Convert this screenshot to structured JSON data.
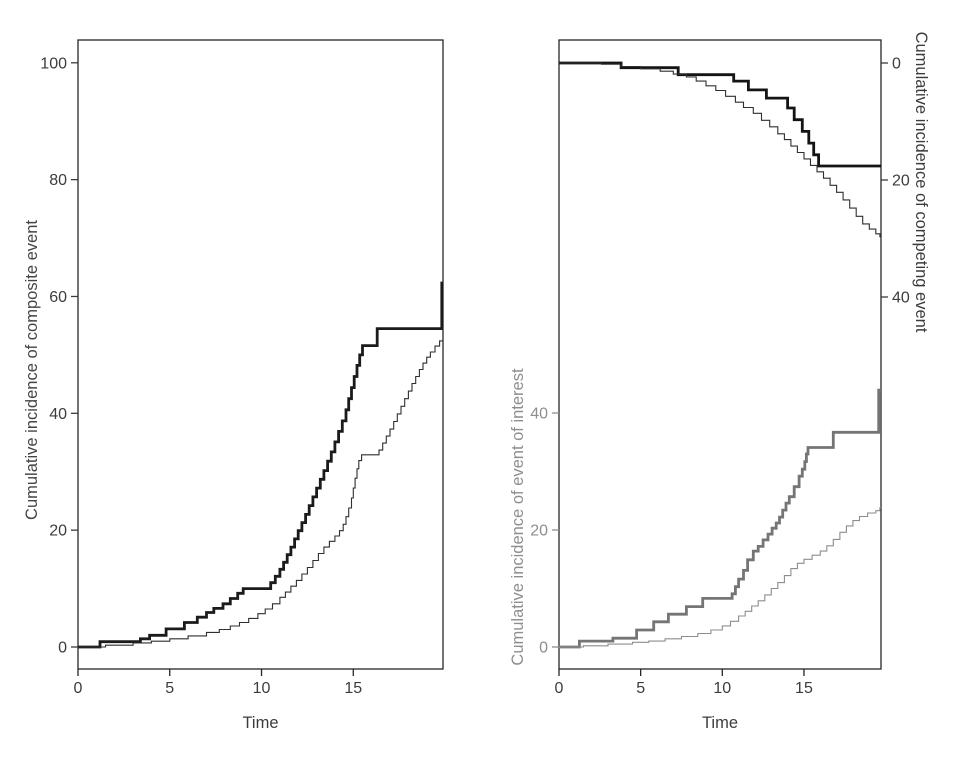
{
  "figure_title": "",
  "chart_data": {
    "type": "line",
    "subtype": "step-function cumulative incidence curves (two panels, two groups per curve: thick vs thin)",
    "grid": "off",
    "legend": "none",
    "x": {
      "label": "Time",
      "ticks": [
        0,
        5,
        10,
        15
      ],
      "range": [
        0,
        19.9
      ]
    },
    "panels": [
      {
        "id": "composite",
        "xlabel": "Time",
        "y_axes": [
          {
            "id": "composite",
            "side": "left",
            "label": "Cumulative incidence of composite event",
            "ticks": [
              0,
              20,
              40,
              60,
              80,
              100
            ],
            "range": [
              0,
              107
            ],
            "inverted": false,
            "color": "#3c3c3c"
          }
        ],
        "series": [
          {
            "name": "composite-thick-line",
            "axis": "composite",
            "color": "#1b1b1b",
            "stroke_width": 2.8,
            "points": [
              [
                0,
                0
              ],
              [
                1.2,
                0.9
              ],
              [
                3.4,
                1.4
              ],
              [
                3.9,
                2.0
              ],
              [
                4.8,
                3.1
              ],
              [
                5.8,
                4.2
              ],
              [
                6.5,
                5.1
              ],
              [
                7.0,
                5.9
              ],
              [
                7.4,
                6.6
              ],
              [
                7.9,
                7.4
              ],
              [
                8.3,
                8.3
              ],
              [
                8.7,
                9.2
              ],
              [
                9.0,
                10.0
              ],
              [
                10.5,
                11.0
              ],
              [
                10.75,
                12.1
              ],
              [
                11.0,
                13.3
              ],
              [
                11.2,
                14.5
              ],
              [
                11.4,
                15.8
              ],
              [
                11.6,
                17.1
              ],
              [
                11.8,
                18.5
              ],
              [
                12.0,
                19.9
              ],
              [
                12.2,
                21.3
              ],
              [
                12.4,
                22.7
              ],
              [
                12.6,
                24.2
              ],
              [
                12.8,
                25.7
              ],
              [
                13.0,
                27.2
              ],
              [
                13.2,
                28.7
              ],
              [
                13.4,
                30.2
              ],
              [
                13.6,
                31.8
              ],
              [
                13.8,
                33.4
              ],
              [
                14.0,
                35.1
              ],
              [
                14.2,
                36.9
              ],
              [
                14.4,
                38.7
              ],
              [
                14.6,
                40.6
              ],
              [
                14.75,
                42.5
              ],
              [
                14.9,
                44.4
              ],
              [
                15.05,
                46.3
              ],
              [
                15.2,
                48.2
              ],
              [
                15.35,
                50.0
              ],
              [
                15.5,
                51.6
              ],
              [
                16.3,
                54.5
              ],
              [
                19.82,
                62.3
              ]
            ]
          },
          {
            "name": "composite-thin-line",
            "axis": "composite",
            "color": "#2f2f2f",
            "stroke_width": 1.1,
            "points": [
              [
                0,
                0
              ],
              [
                1.5,
                0.3
              ],
              [
                3.0,
                0.7
              ],
              [
                4.0,
                1.0
              ],
              [
                5.0,
                1.4
              ],
              [
                6.0,
                1.9
              ],
              [
                7.0,
                2.5
              ],
              [
                7.7,
                3.0
              ],
              [
                8.3,
                3.6
              ],
              [
                8.8,
                4.2
              ],
              [
                9.3,
                4.9
              ],
              [
                9.8,
                5.7
              ],
              [
                10.2,
                6.5
              ],
              [
                10.6,
                7.4
              ],
              [
                11.0,
                8.5
              ],
              [
                11.3,
                9.4
              ],
              [
                11.6,
                10.4
              ],
              [
                11.9,
                11.4
              ],
              [
                12.2,
                12.5
              ],
              [
                12.5,
                13.6
              ],
              [
                12.8,
                14.8
              ],
              [
                13.1,
                16.0
              ],
              [
                13.4,
                17.1
              ],
              [
                13.7,
                18.1
              ],
              [
                14.0,
                19.0
              ],
              [
                14.25,
                19.9
              ],
              [
                14.45,
                21.0
              ],
              [
                14.6,
                22.3
              ],
              [
                14.75,
                23.8
              ],
              [
                14.9,
                25.5
              ],
              [
                15.0,
                27.2
              ],
              [
                15.1,
                28.9
              ],
              [
                15.2,
                30.5
              ],
              [
                15.3,
                31.9
              ],
              [
                15.45,
                32.9
              ],
              [
                16.4,
                33.7
              ],
              [
                16.6,
                34.9
              ],
              [
                16.8,
                36.1
              ],
              [
                17.0,
                37.3
              ],
              [
                17.2,
                38.6
              ],
              [
                17.4,
                39.9
              ],
              [
                17.6,
                41.2
              ],
              [
                17.8,
                42.5
              ],
              [
                18.0,
                43.8
              ],
              [
                18.2,
                45.1
              ],
              [
                18.4,
                46.3
              ],
              [
                18.6,
                47.5
              ],
              [
                18.8,
                48.6
              ],
              [
                19.0,
                49.6
              ],
              [
                19.2,
                50.5
              ],
              [
                19.45,
                51.5
              ],
              [
                19.7,
                52.4
              ]
            ]
          }
        ]
      },
      {
        "id": "interest-competing",
        "xlabel": "Time",
        "y_axes": [
          {
            "id": "interest",
            "side": "left",
            "label": "Cumulative incidence of event of interest",
            "ticks": [
              0,
              20,
              40
            ],
            "range": [
              0,
              46
            ],
            "inverted": false,
            "color": "#8e8e8e"
          },
          {
            "id": "competing",
            "side": "right",
            "label": "Cumulative incidence of competing event",
            "ticks": [
              0,
              20,
              40
            ],
            "range": [
              0,
              46
            ],
            "inverted": true,
            "color": "#3c3c3c"
          }
        ],
        "series": [
          {
            "name": "competing-thick-line",
            "axis": "competing",
            "color": "#141414",
            "stroke_width": 2.8,
            "points": [
              [
                0,
                0
              ],
              [
                3.8,
                0.8
              ],
              [
                7.3,
                2.0
              ],
              [
                10.7,
                3.1
              ],
              [
                11.6,
                4.6
              ],
              [
                12.7,
                6.0
              ],
              [
                14.0,
                7.7
              ],
              [
                14.4,
                9.7
              ],
              [
                14.9,
                11.7
              ],
              [
                15.3,
                13.7
              ],
              [
                15.6,
                15.7
              ],
              [
                15.9,
                17.6
              ]
            ]
          },
          {
            "name": "competing-thin-line",
            "axis": "competing",
            "color": "#2f2f2f",
            "stroke_width": 1.1,
            "points": [
              [
                0,
                0
              ],
              [
                2.6,
                0.2
              ],
              [
                3.8,
                0.6
              ],
              [
                5.0,
                1.0
              ],
              [
                6.2,
                1.4
              ],
              [
                7.0,
                1.9
              ],
              [
                7.8,
                2.4
              ],
              [
                8.4,
                3.1
              ],
              [
                9.0,
                3.9
              ],
              [
                9.6,
                4.7
              ],
              [
                10.2,
                5.7
              ],
              [
                10.8,
                6.7
              ],
              [
                11.3,
                7.6
              ],
              [
                11.9,
                8.6
              ],
              [
                12.4,
                9.8
              ],
              [
                12.9,
                10.9
              ],
              [
                13.4,
                12.1
              ],
              [
                13.8,
                13.1
              ],
              [
                14.2,
                14.2
              ],
              [
                14.6,
                15.3
              ],
              [
                15.0,
                16.4
              ],
              [
                15.4,
                17.5
              ],
              [
                15.8,
                18.6
              ],
              [
                16.2,
                19.7
              ],
              [
                16.6,
                20.9
              ],
              [
                17.0,
                22.1
              ],
              [
                17.4,
                23.4
              ],
              [
                17.8,
                24.8
              ],
              [
                18.2,
                26.2
              ],
              [
                18.6,
                27.5
              ],
              [
                19.0,
                28.4
              ],
              [
                19.4,
                29.2
              ],
              [
                19.65,
                29.7
              ]
            ]
          },
          {
            "name": "interest-thick-line",
            "axis": "interest",
            "color": "#757575",
            "stroke_width": 2.8,
            "points": [
              [
                0,
                0
              ],
              [
                1.25,
                1.0
              ],
              [
                3.3,
                1.5
              ],
              [
                4.75,
                2.9
              ],
              [
                5.8,
                4.3
              ],
              [
                6.7,
                5.6
              ],
              [
                7.8,
                6.9
              ],
              [
                8.8,
                8.3
              ],
              [
                10.6,
                9.1
              ],
              [
                10.8,
                10.3
              ],
              [
                11.0,
                11.6
              ],
              [
                11.3,
                13.1
              ],
              [
                11.55,
                14.9
              ],
              [
                11.9,
                16.4
              ],
              [
                12.2,
                17.2
              ],
              [
                12.5,
                18.3
              ],
              [
                12.8,
                19.3
              ],
              [
                13.05,
                20.3
              ],
              [
                13.3,
                21.2
              ],
              [
                13.5,
                22.2
              ],
              [
                13.7,
                23.4
              ],
              [
                13.9,
                24.6
              ],
              [
                14.1,
                25.7
              ],
              [
                14.4,
                27.4
              ],
              [
                14.7,
                29.2
              ],
              [
                14.9,
                30.4
              ],
              [
                15.05,
                31.7
              ],
              [
                15.15,
                33.0
              ],
              [
                15.25,
                34.1
              ],
              [
                16.8,
                36.7
              ],
              [
                19.58,
                43.9
              ]
            ]
          },
          {
            "name": "interest-thin-line",
            "axis": "interest",
            "color": "#8d8d8d",
            "stroke_width": 1.1,
            "points": [
              [
                0,
                0
              ],
              [
                1.5,
                0.2
              ],
              [
                3.0,
                0.5
              ],
              [
                4.5,
                0.8
              ],
              [
                5.5,
                1.0
              ],
              [
                6.5,
                1.4
              ],
              [
                7.5,
                1.8
              ],
              [
                8.5,
                2.3
              ],
              [
                9.3,
                2.9
              ],
              [
                10.0,
                3.6
              ],
              [
                10.5,
                4.4
              ],
              [
                11.0,
                5.3
              ],
              [
                11.4,
                6.1
              ],
              [
                11.8,
                7.0
              ],
              [
                12.2,
                7.9
              ],
              [
                12.6,
                8.9
              ],
              [
                13.0,
                10.0
              ],
              [
                13.4,
                11.0
              ],
              [
                13.8,
                12.2
              ],
              [
                14.2,
                13.4
              ],
              [
                14.6,
                14.3
              ],
              [
                15.0,
                15.0
              ],
              [
                15.5,
                15.7
              ],
              [
                16.0,
                16.4
              ],
              [
                16.4,
                17.3
              ],
              [
                16.8,
                18.4
              ],
              [
                17.2,
                19.6
              ],
              [
                17.6,
                20.7
              ],
              [
                18.0,
                21.6
              ],
              [
                18.4,
                22.3
              ],
              [
                18.9,
                22.9
              ],
              [
                19.4,
                23.3
              ],
              [
                19.65,
                23.8
              ]
            ]
          }
        ]
      }
    ],
    "colors": {
      "background": "#ffffff",
      "axis_line": "#262626",
      "black_tick_text": "#3c3c3c",
      "gray_tick_text": "#8e8e8e"
    }
  }
}
